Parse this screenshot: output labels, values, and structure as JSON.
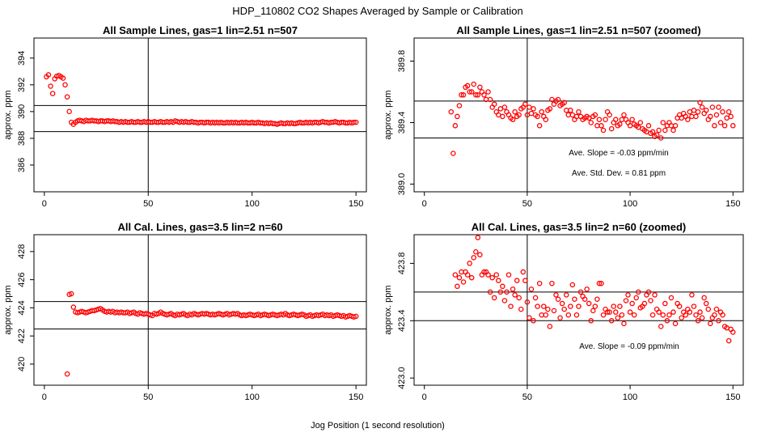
{
  "figure": {
    "title": "HDP_110802  CO2 Shapes Averaged by Sample or Calibration",
    "xlabel": "Jog Position (1 second resolution)"
  },
  "chart_data": [
    {
      "type": "scatter",
      "title": "All Sample Lines, gas=1 lin=2.51 n=507",
      "ylabel": "approx. ppm",
      "xlim": [
        -5,
        155
      ],
      "ylim": [
        384,
        395.5
      ],
      "xticks": [
        0,
        50,
        100,
        150
      ],
      "yticks": [
        386,
        388,
        390,
        392,
        394
      ],
      "vline": 50,
      "hlines": [
        388.5,
        390.45
      ],
      "grid": false,
      "annotations": [],
      "x": [
        1,
        2,
        3,
        4,
        5,
        6,
        7,
        8,
        9,
        10,
        11,
        12,
        13,
        14,
        15,
        16,
        17,
        18,
        19,
        20,
        21,
        22,
        23,
        24,
        25,
        26,
        27,
        28,
        29,
        30,
        31,
        32,
        33,
        34,
        35,
        36,
        37,
        38,
        39,
        40,
        41,
        42,
        43,
        44,
        45,
        46,
        47,
        48,
        49,
        50,
        51,
        52,
        53,
        54,
        55,
        56,
        57,
        58,
        59,
        60,
        61,
        62,
        63,
        64,
        65,
        66,
        67,
        68,
        69,
        70,
        71,
        72,
        73,
        74,
        75,
        76,
        77,
        78,
        79,
        80,
        81,
        82,
        83,
        84,
        85,
        86,
        87,
        88,
        89,
        90,
        91,
        92,
        93,
        94,
        95,
        96,
        97,
        98,
        99,
        100,
        101,
        102,
        103,
        104,
        105,
        106,
        107,
        108,
        109,
        110,
        111,
        112,
        113,
        114,
        115,
        116,
        117,
        118,
        119,
        120,
        121,
        122,
        123,
        124,
        125,
        126,
        127,
        128,
        129,
        130,
        131,
        132,
        133,
        134,
        135,
        136,
        137,
        138,
        139,
        140,
        141,
        142,
        143,
        144,
        145,
        146,
        147,
        148,
        149,
        150
      ],
      "y": [
        392.6,
        392.75,
        391.9,
        391.35,
        392.45,
        392.65,
        392.7,
        392.6,
        392.5,
        392.0,
        391.1,
        390.0,
        389.2,
        389.05,
        389.2,
        389.3,
        389.35,
        389.3,
        389.25,
        389.35,
        389.3,
        389.3,
        389.35,
        389.3,
        389.3,
        389.25,
        389.3,
        389.3,
        389.25,
        389.3,
        389.3,
        389.25,
        389.3,
        389.25,
        389.25,
        389.2,
        389.25,
        389.2,
        389.25,
        389.2,
        389.2,
        389.25,
        389.2,
        389.2,
        389.25,
        389.2,
        389.2,
        389.25,
        389.2,
        389.25,
        389.2,
        389.2,
        389.25,
        389.2,
        389.2,
        389.25,
        389.2,
        389.2,
        389.25,
        389.2,
        389.25,
        389.2,
        389.3,
        389.25,
        389.2,
        389.25,
        389.2,
        389.25,
        389.2,
        389.2,
        389.25,
        389.2,
        389.2,
        389.15,
        389.2,
        389.2,
        389.15,
        389.2,
        389.2,
        389.15,
        389.2,
        389.15,
        389.2,
        389.15,
        389.2,
        389.15,
        389.15,
        389.2,
        389.15,
        389.2,
        389.15,
        389.2,
        389.15,
        389.15,
        389.2,
        389.15,
        389.2,
        389.15,
        389.15,
        389.2,
        389.15,
        389.15,
        389.2,
        389.15,
        389.15,
        389.1,
        389.15,
        389.1,
        389.15,
        389.1,
        389.1,
        389.05,
        389.1,
        389.15,
        389.1,
        389.1,
        389.15,
        389.1,
        389.15,
        389.1,
        389.1,
        389.15,
        389.2,
        389.15,
        389.15,
        389.2,
        389.15,
        389.2,
        389.15,
        389.2,
        389.2,
        389.15,
        389.2,
        389.25,
        389.2,
        389.2,
        389.15,
        389.2,
        389.2,
        389.25,
        389.2,
        389.15,
        389.2,
        389.2,
        389.15,
        389.15,
        389.2,
        389.15,
        389.2,
        389.2
      ]
    },
    {
      "type": "scatter",
      "title": "All Sample Lines, gas=1 lin=2.51 n=507 (zoomed)",
      "ylabel": "approx. ppm",
      "xlim": [
        -5,
        155
      ],
      "ylim": [
        388.95,
        389.95
      ],
      "xticks": [
        0,
        50,
        100,
        150
      ],
      "yticks": [
        389.0,
        389.4,
        389.8
      ],
      "vline": 50,
      "hlines": [
        389.3,
        389.54
      ],
      "grid": false,
      "annotations": [
        {
          "label": "Ave. Slope =",
          "value": "-0.03",
          "unit": "ppm/min"
        },
        {
          "label": "Ave. Std. Dev. =",
          "value": "0.81",
          "unit": "ppm"
        }
      ],
      "x": [
        13,
        14,
        15,
        16,
        17,
        18,
        19,
        20,
        21,
        22,
        23,
        24,
        25,
        26,
        27,
        28,
        29,
        30,
        31,
        32,
        33,
        34,
        35,
        36,
        37,
        38,
        39,
        40,
        41,
        42,
        43,
        44,
        45,
        46,
        47,
        48,
        49,
        50,
        51,
        52,
        53,
        54,
        55,
        56,
        57,
        58,
        59,
        60,
        61,
        62,
        63,
        64,
        65,
        66,
        67,
        68,
        69,
        70,
        71,
        72,
        73,
        74,
        75,
        76,
        77,
        78,
        79,
        80,
        81,
        82,
        83,
        84,
        85,
        86,
        87,
        88,
        89,
        90,
        91,
        92,
        93,
        94,
        95,
        96,
        97,
        98,
        99,
        100,
        101,
        102,
        103,
        104,
        105,
        106,
        107,
        108,
        109,
        110,
        111,
        112,
        113,
        114,
        115,
        116,
        117,
        118,
        119,
        120,
        121,
        122,
        123,
        124,
        125,
        126,
        127,
        128,
        129,
        130,
        131,
        132,
        133,
        134,
        135,
        136,
        137,
        138,
        139,
        140,
        141,
        142,
        143,
        144,
        145,
        146,
        147,
        148,
        149,
        150
      ],
      "y": [
        389.47,
        389.2,
        389.38,
        389.44,
        389.51,
        389.58,
        389.58,
        389.63,
        389.64,
        389.6,
        389.6,
        389.65,
        389.58,
        389.58,
        389.63,
        389.6,
        389.58,
        389.55,
        389.6,
        389.55,
        389.5,
        389.52,
        389.47,
        389.45,
        389.49,
        389.44,
        389.5,
        389.47,
        389.45,
        389.43,
        389.42,
        389.47,
        389.44,
        389.45,
        389.49,
        389.5,
        389.52,
        389.45,
        389.5,
        389.46,
        389.49,
        389.45,
        389.44,
        389.38,
        389.47,
        389.44,
        389.42,
        389.48,
        389.49,
        389.55,
        389.52,
        389.54,
        389.55,
        389.51,
        389.52,
        389.53,
        389.48,
        389.45,
        389.48,
        389.45,
        389.42,
        389.44,
        389.47,
        389.44,
        389.42,
        389.43,
        389.44,
        389.43,
        389.4,
        389.44,
        389.45,
        389.38,
        389.42,
        389.38,
        389.35,
        389.42,
        389.47,
        389.45,
        389.36,
        389.4,
        389.42,
        389.38,
        389.39,
        389.42,
        389.45,
        389.42,
        389.4,
        389.38,
        389.42,
        389.39,
        389.38,
        389.37,
        389.4,
        389.36,
        389.35,
        389.34,
        389.38,
        389.33,
        389.34,
        389.31,
        389.32,
        389.35,
        389.3,
        389.4,
        389.35,
        389.38,
        389.4,
        389.38,
        389.35,
        389.38,
        389.43,
        389.45,
        389.43,
        389.46,
        389.44,
        389.42,
        389.47,
        389.44,
        389.48,
        389.44,
        389.47,
        389.53,
        389.5,
        389.46,
        389.48,
        389.42,
        389.44,
        389.5,
        389.38,
        389.45,
        389.5,
        389.4,
        389.47,
        389.38,
        389.43,
        389.47,
        389.44,
        389.38
      ]
    },
    {
      "type": "scatter",
      "title": "All Cal. Lines, gas=3.5 lin=2 n=60",
      "ylabel": "approx. ppm",
      "xlim": [
        -5,
        155
      ],
      "ylim": [
        418.5,
        429.2
      ],
      "xticks": [
        0,
        50,
        100,
        150
      ],
      "yticks": [
        420,
        422,
        424,
        426,
        428
      ],
      "vline": 50,
      "hlines": [
        422.5,
        424.45
      ],
      "grid": false,
      "annotations": [],
      "x": [
        11,
        12,
        13,
        14,
        15,
        16,
        17,
        18,
        19,
        20,
        21,
        22,
        23,
        24,
        25,
        26,
        27,
        28,
        29,
        30,
        31,
        32,
        33,
        34,
        35,
        36,
        37,
        38,
        39,
        40,
        41,
        42,
        43,
        44,
        45,
        46,
        47,
        48,
        49,
        50,
        51,
        52,
        53,
        54,
        55,
        56,
        57,
        58,
        59,
        60,
        61,
        62,
        63,
        64,
        65,
        66,
        67,
        68,
        69,
        70,
        71,
        72,
        73,
        74,
        75,
        76,
        77,
        78,
        79,
        80,
        81,
        82,
        83,
        84,
        85,
        86,
        87,
        88,
        89,
        90,
        91,
        92,
        93,
        94,
        95,
        96,
        97,
        98,
        99,
        100,
        101,
        102,
        103,
        104,
        105,
        106,
        107,
        108,
        109,
        110,
        111,
        112,
        113,
        114,
        115,
        116,
        117,
        118,
        119,
        120,
        121,
        122,
        123,
        124,
        125,
        126,
        127,
        128,
        129,
        130,
        131,
        132,
        133,
        134,
        135,
        136,
        137,
        138,
        139,
        140,
        141,
        142,
        143,
        144,
        145,
        146,
        147,
        148,
        149,
        150
      ],
      "y": [
        419.3,
        424.95,
        425.0,
        424.05,
        423.7,
        423.65,
        423.7,
        423.75,
        423.7,
        423.65,
        423.7,
        423.75,
        423.8,
        423.8,
        423.85,
        423.9,
        423.95,
        423.85,
        423.75,
        423.7,
        423.75,
        423.7,
        423.75,
        423.65,
        423.7,
        423.65,
        423.7,
        423.65,
        423.65,
        423.7,
        423.6,
        423.65,
        423.7,
        423.6,
        423.55,
        423.65,
        423.6,
        423.55,
        423.6,
        423.55,
        423.5,
        423.45,
        423.6,
        423.55,
        423.6,
        423.7,
        423.6,
        423.55,
        423.5,
        423.55,
        423.6,
        423.5,
        423.45,
        423.55,
        423.5,
        423.55,
        423.6,
        423.5,
        423.45,
        423.55,
        423.5,
        423.6,
        423.55,
        423.5,
        423.55,
        423.6,
        423.55,
        423.6,
        423.55,
        423.5,
        423.55,
        423.5,
        423.55,
        423.6,
        423.55,
        423.5,
        423.55,
        423.6,
        423.5,
        423.55,
        423.6,
        423.55,
        423.6,
        423.5,
        423.45,
        423.5,
        423.45,
        423.5,
        423.55,
        423.5,
        423.45,
        423.5,
        423.55,
        423.45,
        423.5,
        423.55,
        423.5,
        423.45,
        423.5,
        423.55,
        423.5,
        423.45,
        423.5,
        423.55,
        423.5,
        423.6,
        423.5,
        423.45,
        423.5,
        423.55,
        423.5,
        423.45,
        423.5,
        423.55,
        423.5,
        423.4,
        423.45,
        423.5,
        423.4,
        423.45,
        423.5,
        423.45,
        423.5,
        423.55,
        423.45,
        423.5,
        423.45,
        423.5,
        423.4,
        423.45,
        423.5,
        423.45,
        423.4,
        423.45,
        423.35,
        423.4,
        423.45,
        423.4,
        423.35,
        423.4
      ]
    },
    {
      "type": "scatter",
      "title": "All Cal. Lines, gas=3.5 lin=2 n=60 (zoomed)",
      "ylabel": "approx. ppm",
      "xlim": [
        -5,
        155
      ],
      "ylim": [
        422.95,
        424.0
      ],
      "xticks": [
        0,
        50,
        100,
        150
      ],
      "yticks": [
        423.0,
        423.4,
        423.8
      ],
      "vline": 50,
      "hlines": [
        423.4,
        423.6
      ],
      "grid": false,
      "annotations": [
        {
          "label": "Ave. Slope =",
          "value": "-0.09",
          "unit": "ppm/min"
        }
      ],
      "x": [
        15,
        16,
        17,
        18,
        19,
        20,
        21,
        22,
        23,
        24,
        25,
        26,
        27,
        28,
        29,
        30,
        31,
        32,
        33,
        34,
        35,
        36,
        37,
        38,
        39,
        40,
        41,
        42,
        43,
        44,
        45,
        46,
        47,
        48,
        49,
        50,
        51,
        52,
        53,
        54,
        55,
        56,
        57,
        58,
        59,
        60,
        61,
        62,
        63,
        64,
        65,
        66,
        67,
        68,
        69,
        70,
        71,
        72,
        73,
        74,
        75,
        76,
        77,
        78,
        79,
        80,
        81,
        82,
        83,
        84,
        85,
        86,
        87,
        88,
        89,
        90,
        91,
        92,
        93,
        94,
        95,
        96,
        97,
        98,
        99,
        100,
        101,
        102,
        103,
        104,
        105,
        106,
        107,
        108,
        109,
        110,
        111,
        112,
        113,
        114,
        115,
        116,
        117,
        118,
        119,
        120,
        121,
        122,
        123,
        124,
        125,
        126,
        127,
        128,
        129,
        130,
        131,
        132,
        133,
        134,
        135,
        136,
        137,
        138,
        139,
        140,
        141,
        142,
        143,
        144,
        145,
        146,
        147,
        148,
        149,
        150
      ],
      "y": [
        423.72,
        423.64,
        423.7,
        423.74,
        423.67,
        423.74,
        423.72,
        423.8,
        423.7,
        423.84,
        423.88,
        423.98,
        423.86,
        423.72,
        423.74,
        423.74,
        423.72,
        423.6,
        423.7,
        423.56,
        423.72,
        423.68,
        423.6,
        423.64,
        423.54,
        423.6,
        423.72,
        423.5,
        423.62,
        423.58,
        423.68,
        423.56,
        423.48,
        423.74,
        423.68,
        423.53,
        423.42,
        423.62,
        423.4,
        423.56,
        423.5,
        423.66,
        423.44,
        423.5,
        423.44,
        423.48,
        423.36,
        423.66,
        423.47,
        423.58,
        423.55,
        423.42,
        423.52,
        423.48,
        423.58,
        423.44,
        423.5,
        423.65,
        423.55,
        423.44,
        423.5,
        423.6,
        423.57,
        423.55,
        423.62,
        423.52,
        423.4,
        423.47,
        423.5,
        423.55,
        423.66,
        423.66,
        423.44,
        423.48,
        423.46,
        423.46,
        423.4,
        423.5,
        423.46,
        423.42,
        423.5,
        423.44,
        423.38,
        423.54,
        423.58,
        423.46,
        423.52,
        423.44,
        423.56,
        423.6,
        423.49,
        423.5,
        423.52,
        423.58,
        423.6,
        423.54,
        423.44,
        423.58,
        423.48,
        423.46,
        423.36,
        423.44,
        423.52,
        423.4,
        423.44,
        423.56,
        423.46,
        423.38,
        423.52,
        423.5,
        423.42,
        423.46,
        423.44,
        423.48,
        423.46,
        423.58,
        423.5,
        423.44,
        423.4,
        423.46,
        423.42,
        423.56,
        423.52,
        423.48,
        423.38,
        423.42,
        423.44,
        423.48,
        423.4,
        423.46,
        423.44,
        423.36,
        423.35,
        423.26,
        423.34,
        423.32
      ]
    }
  ]
}
